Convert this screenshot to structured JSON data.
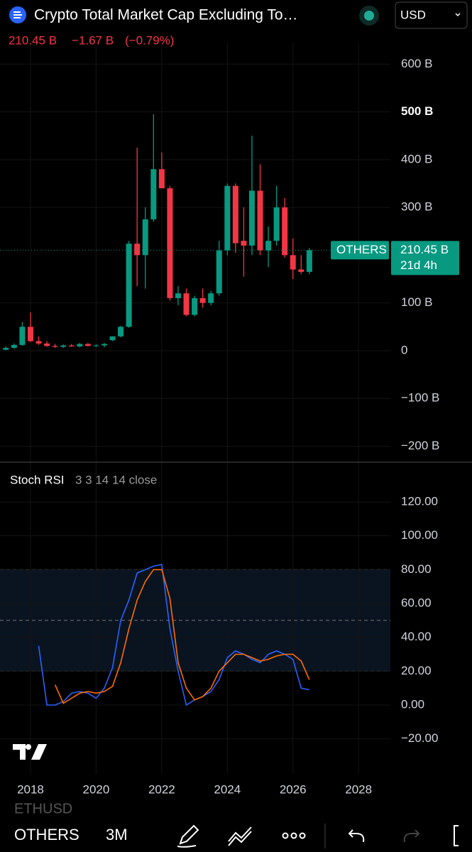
{
  "header": {
    "title": "Crypto Total Market Cap Excluding To…",
    "price": "210.45 B",
    "change": "−1.67 B",
    "change_pct": "(−0.79%)",
    "currency": "USD"
  },
  "indicator": {
    "name": "Stoch RSI",
    "params": "3 3 14 14 close"
  },
  "footer": {
    "tab_partial": "ETHUSD",
    "symbol": "OTHERS",
    "interval": "3M"
  },
  "chart_data": [
    {
      "type": "candlestick",
      "x": [
        2017.25,
        2017.5,
        2017.75,
        2018.0,
        2018.25,
        2018.5,
        2018.75,
        2019.0,
        2019.25,
        2019.5,
        2019.75,
        2020.0,
        2020.25,
        2020.5,
        2020.75,
        2021.0,
        2021.25,
        2021.5,
        2021.75,
        2022.0,
        2022.25,
        2022.5,
        2022.75,
        2023.0,
        2023.25,
        2023.5,
        2023.75,
        2024.0,
        2024.25,
        2024.5,
        2024.75,
        2025.0,
        2025.25,
        2025.5,
        2025.75,
        2026.0,
        2026.25,
        2026.5
      ],
      "open": [
        2,
        6,
        12,
        50,
        20,
        15,
        10,
        8,
        11,
        9,
        14,
        10,
        11,
        22,
        30,
        50,
        224,
        200,
        275,
        380,
        340,
        110,
        120,
        75,
        110,
        100,
        120,
        210,
        345,
        230,
        220,
        335,
        210,
        230,
        300,
        200,
        170,
        165
      ],
      "high": [
        9,
        15,
        60,
        80,
        30,
        20,
        14,
        13,
        14,
        16,
        16,
        14,
        16,
        30,
        52,
        230,
        425,
        300,
        495,
        415,
        345,
        135,
        130,
        115,
        130,
        125,
        230,
        350,
        350,
        300,
        450,
        390,
        260,
        345,
        320,
        235,
        200,
        215
      ],
      "low": [
        1,
        4,
        10,
        18,
        12,
        8,
        6,
        6,
        8,
        7,
        9,
        8,
        7,
        20,
        28,
        48,
        135,
        130,
        270,
        340,
        105,
        95,
        72,
        72,
        90,
        95,
        115,
        200,
        205,
        155,
        200,
        200,
        175,
        220,
        195,
        150,
        160,
        160
      ],
      "close": [
        6,
        12,
        50,
        20,
        15,
        10,
        8,
        11,
        9,
        14,
        10,
        11,
        14,
        30,
        50,
        224,
        200,
        275,
        380,
        340,
        110,
        120,
        75,
        110,
        100,
        120,
        210,
        345,
        225,
        220,
        335,
        210,
        230,
        300,
        200,
        170,
        165,
        210.45
      ],
      "up_color": "#089981",
      "down_color": "#f23645",
      "xlim": [
        2017.07,
        2028.97
      ],
      "ylim": [
        -232,
        645
      ],
      "yticks": [
        {
          "value": 600,
          "label": "600 B"
        },
        {
          "value": 500,
          "label": "500 B"
        },
        {
          "value": 400,
          "label": "400 B"
        },
        {
          "value": 300,
          "label": "300 B"
        },
        {
          "value": 100,
          "label": "100 B"
        },
        0,
        {
          "value": -100,
          "label": "−100 B"
        },
        {
          "value": -200,
          "label": "−200 B"
        }
      ],
      "last": {
        "value": 210.45,
        "label": "210.45 B",
        "symbol": "OTHERS",
        "countdown": "21d 4h"
      },
      "grid": true
    },
    {
      "type": "line",
      "x": [
        2018.25,
        2018.5,
        2018.75,
        2019.0,
        2019.25,
        2019.5,
        2019.75,
        2020.0,
        2020.25,
        2020.5,
        2020.75,
        2021.0,
        2021.25,
        2021.5,
        2021.75,
        2022.0,
        2022.25,
        2022.5,
        2022.75,
        2023.0,
        2023.25,
        2023.5,
        2023.75,
        2024.0,
        2024.25,
        2024.5,
        2024.75,
        2025.0,
        2025.25,
        2025.5,
        2025.75,
        2026.0,
        2026.25,
        2026.5
      ],
      "series": [
        {
          "color": "#2962ff",
          "values": [
            35,
            0,
            0,
            2,
            7,
            8,
            7,
            4,
            10,
            22,
            50,
            62,
            78,
            80,
            82,
            83,
            45,
            20,
            0,
            3,
            5,
            8,
            15,
            28,
            32,
            30,
            27,
            25,
            30,
            32,
            30,
            27,
            10,
            9
          ]
        },
        {
          "color": "#ff6d00",
          "values": [
            null,
            null,
            12,
            1,
            4,
            7,
            8,
            7,
            8,
            11,
            25,
            45,
            62,
            73,
            80,
            80,
            63,
            25,
            10,
            3,
            5,
            10,
            20,
            25,
            30,
            30,
            28,
            26,
            27,
            29,
            30,
            30,
            26,
            15
          ]
        }
      ],
      "bands": {
        "upper": 80,
        "middle": 50,
        "lower": 20
      },
      "xlim": [
        2017.07,
        2028.97
      ],
      "ylim": [
        -40.7,
        139.7
      ],
      "yticks": [
        {
          "value": 120,
          "label": "120.00"
        },
        {
          "value": 100,
          "label": "100.00"
        },
        {
          "value": 80,
          "label": "80.00"
        },
        {
          "value": 60,
          "label": "60.00"
        },
        {
          "value": 40,
          "label": "40.00"
        },
        {
          "value": 20,
          "label": "20.00"
        },
        {
          "value": 0,
          "label": "0.00"
        },
        {
          "value": -20,
          "label": "−20.00"
        }
      ],
      "xticks": [
        2018,
        2020,
        2022,
        2024,
        2026,
        2028
      ],
      "grid": true
    }
  ]
}
